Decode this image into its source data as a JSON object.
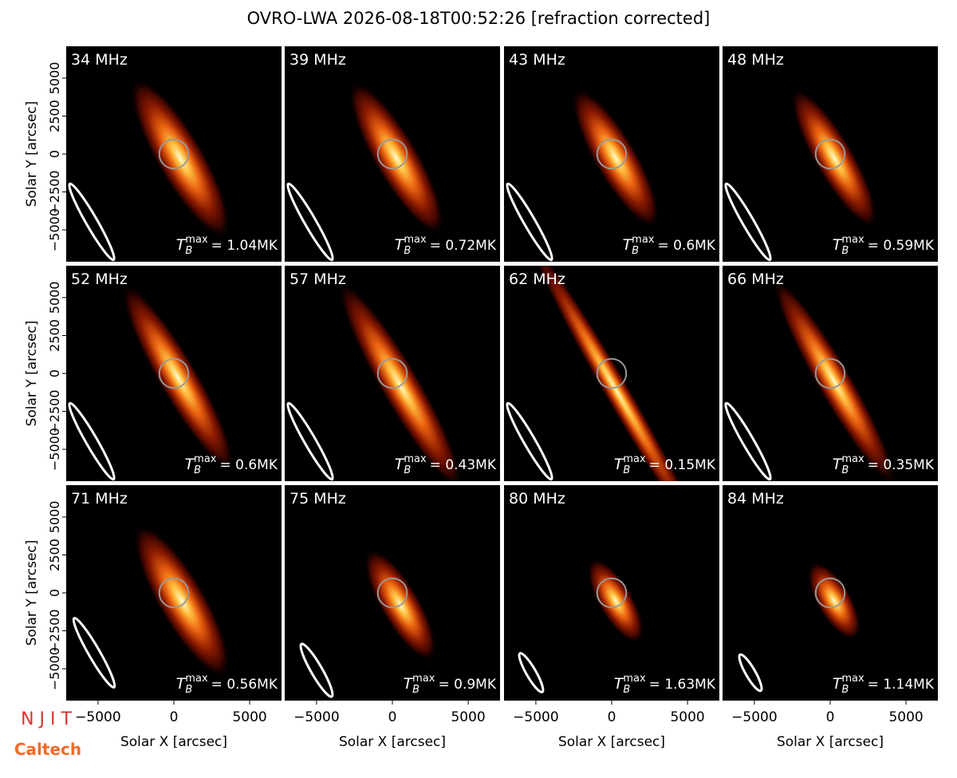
{
  "title": "OVRO-LWA 2026-08-18T00:52:26 [refraction corrected]",
  "logos": [
    "N J I T",
    "Caltech"
  ],
  "chart_data": [
    {
      "type": "image",
      "title": "34 MHz",
      "annotation": {
        "symbol": "T",
        "sub": "B",
        "sup": "max",
        "text": "= 1.04MK"
      },
      "xlim": [
        -7100,
        7100
      ],
      "ylim": [
        -7100,
        7100
      ],
      "ylabel": "Solar Y [arcsec]",
      "yticks": [
        {
          "value": -5000,
          "label": "−5000"
        },
        {
          "value": -2500,
          "label": "−2500"
        },
        0,
        2500,
        5000
      ]
    },
    {
      "type": "image",
      "title": "39 MHz",
      "annotation": {
        "symbol": "T",
        "sub": "B",
        "sup": "max",
        "text": "= 0.72MK"
      },
      "xlim": [
        -7100,
        7100
      ],
      "ylim": [
        -7100,
        7100
      ]
    },
    {
      "type": "image",
      "title": "43 MHz",
      "annotation": {
        "symbol": "T",
        "sub": "B",
        "sup": "max",
        "text": "= 0.6MK"
      },
      "xlim": [
        -7100,
        7100
      ],
      "ylim": [
        -7100,
        7100
      ]
    },
    {
      "type": "image",
      "title": "48 MHz",
      "annotation": {
        "symbol": "T",
        "sub": "B",
        "sup": "max",
        "text": "= 0.59MK"
      },
      "xlim": [
        -7100,
        7100
      ],
      "ylim": [
        -7100,
        7100
      ]
    },
    {
      "type": "image",
      "title": "52 MHz",
      "annotation": {
        "symbol": "T",
        "sub": "B",
        "sup": "max",
        "text": "= 0.6MK"
      },
      "xlim": [
        -7100,
        7100
      ],
      "ylim": [
        -7100,
        7100
      ],
      "ylabel": "Solar Y [arcsec]",
      "yticks": [
        {
          "value": -5000,
          "label": "−5000"
        },
        {
          "value": -2500,
          "label": "−2500"
        },
        0,
        2500,
        5000
      ]
    },
    {
      "type": "image",
      "title": "57 MHz",
      "annotation": {
        "symbol": "T",
        "sub": "B",
        "sup": "max",
        "text": "= 0.43MK"
      },
      "xlim": [
        -7100,
        7100
      ],
      "ylim": [
        -7100,
        7100
      ]
    },
    {
      "type": "image",
      "title": "62 MHz",
      "annotation": {
        "symbol": "T",
        "sub": "B",
        "sup": "max",
        "text": "= 0.15MK"
      },
      "xlim": [
        -7100,
        7100
      ],
      "ylim": [
        -7100,
        7100
      ]
    },
    {
      "type": "image",
      "title": "66 MHz",
      "annotation": {
        "symbol": "T",
        "sub": "B",
        "sup": "max",
        "text": "= 0.35MK"
      },
      "xlim": [
        -7100,
        7100
      ],
      "ylim": [
        -7100,
        7100
      ]
    },
    {
      "type": "image",
      "title": "71 MHz",
      "annotation": {
        "symbol": "T",
        "sub": "B",
        "sup": "max",
        "text": "= 0.56MK"
      },
      "xlim": [
        -7100,
        7100
      ],
      "ylim": [
        -7100,
        7100
      ],
      "ylabel": "Solar Y [arcsec]",
      "yticks": [
        {
          "value": -5000,
          "label": "−5000"
        },
        {
          "value": -2500,
          "label": "−2500"
        },
        0,
        2500,
        5000
      ],
      "xlabel": "Solar X [arcsec]",
      "xticks": [
        {
          "value": -5000,
          "label": "−5000"
        },
        0,
        5000
      ]
    },
    {
      "type": "image",
      "title": "75 MHz",
      "annotation": {
        "symbol": "T",
        "sub": "B",
        "sup": "max",
        "text": "= 0.9MK"
      },
      "xlim": [
        -7100,
        7100
      ],
      "ylim": [
        -7100,
        7100
      ],
      "xlabel": "Solar X [arcsec]",
      "xticks": [
        {
          "value": -5000,
          "label": "−5000"
        },
        0,
        5000
      ]
    },
    {
      "type": "image",
      "title": "80 MHz",
      "annotation": {
        "symbol": "T",
        "sub": "B",
        "sup": "max",
        "text": "= 1.63MK"
      },
      "xlim": [
        -7100,
        7100
      ],
      "ylim": [
        -7100,
        7100
      ],
      "xlabel": "Solar X [arcsec]",
      "xticks": [
        {
          "value": -5000,
          "label": "−5000"
        },
        0,
        5000
      ]
    },
    {
      "type": "image",
      "title": "84 MHz",
      "annotation": {
        "symbol": "T",
        "sub": "B",
        "sup": "max",
        "text": "= 1.14MK"
      },
      "xlim": [
        -7100,
        7100
      ],
      "ylim": [
        -7100,
        7100
      ],
      "xlabel": "Solar X [arcsec]",
      "xticks": [
        {
          "value": -5000,
          "label": "−5000"
        },
        0,
        5000
      ]
    }
  ]
}
